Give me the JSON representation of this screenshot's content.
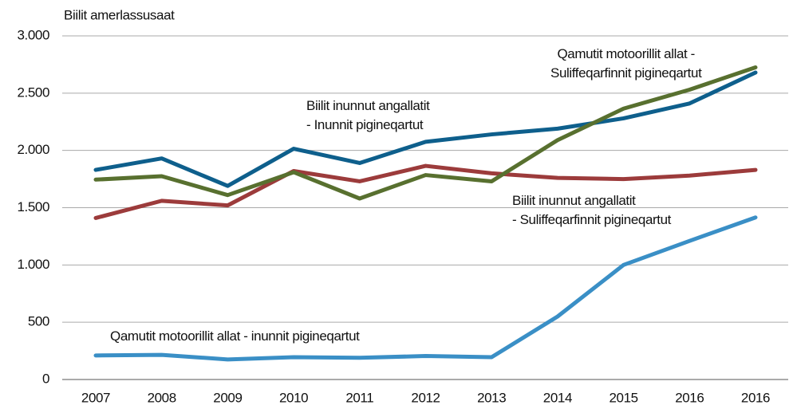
{
  "chart_data": {
    "type": "line",
    "y_label": "Biilit amerlassusaat",
    "categories": [
      "2007",
      "2008",
      "2009",
      "2010",
      "2011",
      "2012",
      "2013",
      "2014",
      "2015",
      "2016",
      "2016"
    ],
    "series": [
      {
        "name": "Biilit inunnut angallatit\n- Inunnit pigineqartut",
        "color": "#0e5f8c",
        "values": [
          1830,
          1930,
          1690,
          2015,
          1890,
          2075,
          2140,
          2190,
          2280,
          2410,
          2680
        ]
      },
      {
        "name": "Biilit inunnut angallatit\n- Suliffeqarfinnit pigineqartut",
        "color": "#9c3b3b",
        "values": [
          1410,
          1560,
          1520,
          1820,
          1730,
          1865,
          1800,
          1760,
          1750,
          1780,
          1830
        ]
      },
      {
        "name": "Qamutit motoorillit allat -\nSuliffeqarfinnit pigineqartut",
        "color": "#58702f",
        "values": [
          1745,
          1775,
          1610,
          1810,
          1580,
          1785,
          1730,
          2090,
          2365,
          2530,
          2725
        ]
      },
      {
        "name": "Qamutit motoorillit allat - inunnit pigineqartut",
        "color": "#3a8fc6",
        "values": [
          210,
          215,
          175,
          195,
          190,
          205,
          195,
          550,
          1000,
          1210,
          1415
        ]
      }
    ],
    "ylim": [
      0,
      3000
    ],
    "yticks": [
      0,
      500,
      {
        "value": 1000,
        "label": "1.000"
      },
      {
        "value": 1500,
        "label": "1.500"
      },
      {
        "value": 2000,
        "label": "2.000"
      },
      {
        "value": 2500,
        "label": "2.500"
      },
      {
        "value": 3000,
        "label": "3.000"
      }
    ],
    "grid": true
  }
}
